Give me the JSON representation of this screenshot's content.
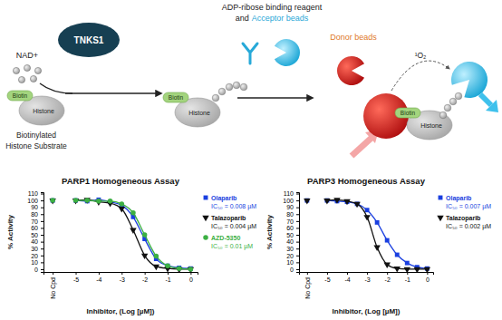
{
  "chart_data": [
    {
      "type": "line",
      "title": "PARP1 Homogeneous Assay",
      "x_label": "Inhibitor, (Log [µM])",
      "y_label": "% Activity",
      "x": [
        -5,
        -4.5,
        -4,
        -3.5,
        -3,
        -2.5,
        -2,
        -1.5,
        -1,
        -0.5,
        0
      ],
      "control_x": -6,
      "series": [
        {
          "name": "Olaparib",
          "annotation": "IC₅₀ = 0.008 µM",
          "color": "#1a3fe0",
          "marker": "square",
          "line_style": "solid",
          "control": 100,
          "values": [
            100,
            99,
            101,
            98,
            93,
            76,
            44,
            15,
            5,
            2,
            1
          ]
        },
        {
          "name": "Talazoparib",
          "annotation": "IC₅₀ = 0.004 µM",
          "color": "#111111",
          "marker": "triangle-down",
          "line_style": "solid",
          "control": 100,
          "values": [
            100,
            101,
            98,
            96,
            88,
            57,
            20,
            4,
            1,
            0,
            0
          ]
        },
        {
          "name": "AZD-5350",
          "annotation": "IC₅₀ = 0.01 µM",
          "color": "#3cb043",
          "marker": "circle",
          "line_style": "solid",
          "control": 100,
          "values": [
            100,
            100,
            99,
            99,
            95,
            82,
            50,
            19,
            5,
            1,
            0
          ]
        }
      ],
      "xlim": [
        -6.4,
        0.3
      ],
      "xticks": [
        {
          "value": -6,
          "label": "No Cpd"
        },
        -5,
        -4,
        -3,
        -2,
        -1,
        0
      ],
      "ylim": [
        -4,
        112
      ],
      "yticks": [
        0,
        10,
        20,
        30,
        40,
        50,
        60,
        70,
        80,
        90,
        100,
        110
      ],
      "grid": false,
      "legend": "right"
    },
    {
      "type": "line",
      "title": "PARP3 Homogeneous Assay",
      "x_label": "Inhibitor, (Log [µM])",
      "y_label": "% Activity",
      "x": [
        -5,
        -4.5,
        -4,
        -3.5,
        -3,
        -2.5,
        -2,
        -1.5,
        -1,
        -0.5,
        0
      ],
      "control_x": -6,
      "series": [
        {
          "name": "Olaparib",
          "annotation": "IC₅₀ = 0.007 µM",
          "color": "#1a3fe0",
          "marker": "square",
          "line_style": "solid",
          "control": 100,
          "values": [
            100,
            99,
            98,
            95,
            86,
            68,
            42,
            21,
            9,
            3,
            1
          ]
        },
        {
          "name": "Talazoparib",
          "annotation": "IC₅₀ = 0.002 µM",
          "color": "#111111",
          "marker": "triangle-down",
          "line_style": "solid",
          "control": 100,
          "values": [
            100,
            101,
            99,
            95,
            76,
            32,
            7,
            1,
            0,
            0,
            0
          ]
        }
      ],
      "xlim": [
        -6.4,
        0.3
      ],
      "xticks": [
        {
          "value": -6,
          "label": "No Cpd"
        },
        -5,
        -4,
        -3,
        -2,
        -1,
        0
      ],
      "ylim": [
        -4,
        112
      ],
      "yticks": [
        0,
        10,
        20,
        30,
        40,
        50,
        60,
        70,
        80,
        90,
        100,
        110
      ],
      "grid": false,
      "legend": "right"
    }
  ],
  "diagram": {
    "nad": "NAD+",
    "enzyme": "TNKS1",
    "reagent_line1": "ADP-ribose binding reagent",
    "reagent_line2_prefix": "and",
    "acceptor": "Acceptor beads",
    "donor": "Donor beads",
    "biotin": "Biotin",
    "histone": "Histone",
    "substrate_line1": "Biotinylated",
    "substrate_line2": "Histone Substrate",
    "singlet_oxygen": "¹O₂"
  }
}
